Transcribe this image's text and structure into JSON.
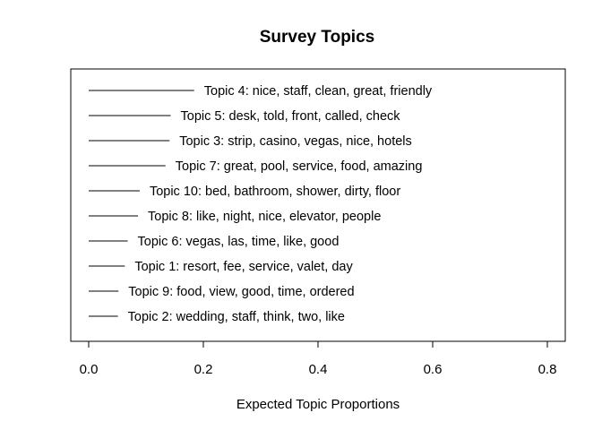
{
  "chart_data": {
    "type": "bar",
    "orientation": "horizontal",
    "title": "Survey Topics",
    "xlabel": "Expected Topic Proportions",
    "ylabel": "",
    "xlim": [
      0,
      0.8
    ],
    "xticks": [
      "0.0",
      "0.2",
      "0.4",
      "0.6",
      "0.8"
    ],
    "tick_values": [
      0,
      0.2,
      0.4,
      0.6,
      0.8
    ],
    "grid": false,
    "categories": [
      "Topic 4: nice, staff, clean, great, friendly",
      "Topic 5: desk, told, front, called, check",
      "Topic 3: strip, casino, vegas, nice, hotels",
      "Topic 7: great, pool, service, food, amazing",
      "Topic 10: bed, bathroom, shower, dirty, floor",
      "Topic 8: like, night, nice, elevator, people",
      "Topic 6: vegas, las, time, like, good",
      "Topic 1: resort, fee, service, valet, day",
      "Topic 9: food, view, good, time, ordered",
      "Topic 2: wedding, staff, think, two, like"
    ],
    "values": [
      0.184,
      0.143,
      0.141,
      0.134,
      0.089,
      0.086,
      0.068,
      0.063,
      0.052,
      0.051
    ]
  }
}
